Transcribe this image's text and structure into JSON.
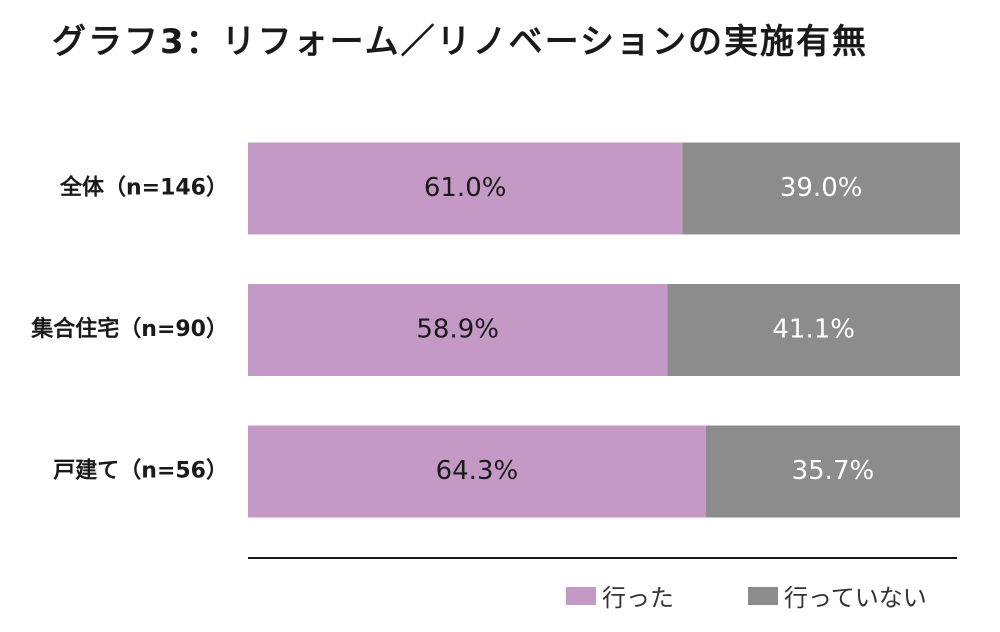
{
  "title": "グラフ3：リフォーム／リノベーションの実施有無",
  "colors": {
    "done": "#c499c6",
    "not_done": "#8c8c8c",
    "axis": "#1a1a1a"
  },
  "chart_data": {
    "type": "bar",
    "orientation": "horizontal",
    "stacked": true,
    "title": "グラフ3：リフォーム／リノベーションの実施有無",
    "categories": [
      "全体（n=146）",
      "集合住宅（n=90）",
      "戸建て（n=56）"
    ],
    "series": [
      {
        "name": "行った",
        "values": [
          61.0,
          58.9,
          64.3
        ],
        "labels": [
          "61.0%",
          "58.9%",
          "64.3%"
        ]
      },
      {
        "name": "行っていない",
        "values": [
          39.0,
          41.1,
          35.7
        ],
        "labels": [
          "39.0%",
          "41.1%",
          "35.7%"
        ]
      }
    ],
    "xlim": [
      0,
      100
    ],
    "grid": false,
    "legend": "bottom-right"
  }
}
